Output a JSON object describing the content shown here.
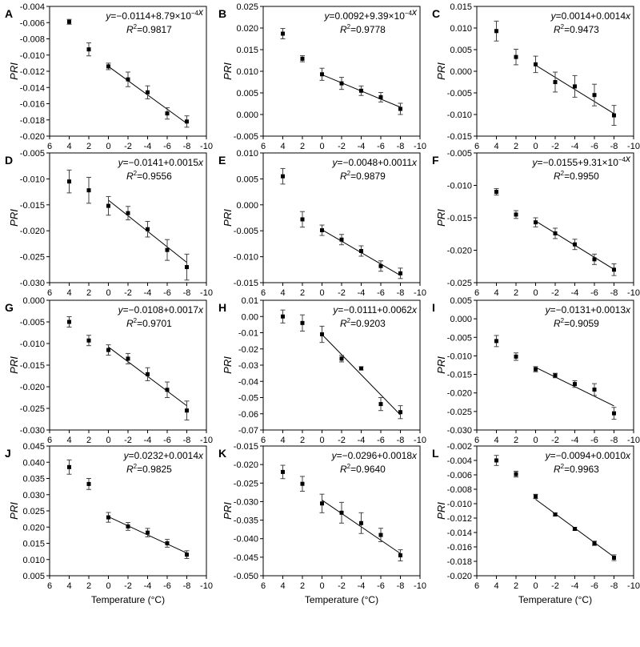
{
  "chart_data": [
    {
      "type": "scatter",
      "panel": "A",
      "ylabel": "PRI",
      "xlabel": "",
      "xlim": [
        6,
        -10
      ],
      "ylim": [
        -0.02,
        -0.004
      ],
      "yticks": [
        "-0.004",
        "-0.006",
        "-0.008",
        "-0.010",
        "-0.012",
        "-0.014",
        "-0.016",
        "-0.018",
        "-0.020"
      ],
      "xticks": [
        "6",
        "4",
        "2",
        "0",
        "-2",
        "-4",
        "-6",
        "-8",
        "-10"
      ],
      "x": [
        4,
        2,
        0,
        -2,
        -4,
        -6,
        -8
      ],
      "y": [
        -0.0059,
        -0.0093,
        -0.0114,
        -0.013,
        -0.0146,
        -0.0172,
        -0.0182
      ],
      "err": [
        0.0003,
        0.0008,
        0.0004,
        0.0009,
        0.0008,
        0.0007,
        0.0007
      ],
      "fit": {
        "intercept": -0.0114,
        "slope": 0.000879,
        "x_range": [
          0,
          -8
        ]
      },
      "equation": "y=−0.0114+8.79×10⁻⁴x",
      "r2": "R²=0.9817"
    },
    {
      "type": "scatter",
      "panel": "B",
      "ylabel": "PRI",
      "xlabel": "",
      "xlim": [
        6,
        -10
      ],
      "ylim": [
        -0.005,
        0.025
      ],
      "yticks": [
        "0.025",
        "0.020",
        "0.015",
        "0.010",
        "0.005",
        "0.000",
        "-0.005"
      ],
      "xticks": [
        "6",
        "4",
        "2",
        "0",
        "-2",
        "-4",
        "-6",
        "-8",
        "-10"
      ],
      "x": [
        4,
        2,
        0,
        -2,
        -4,
        -6,
        -8
      ],
      "y": [
        0.0187,
        0.0129,
        0.0093,
        0.0072,
        0.0055,
        0.004,
        0.0013
      ],
      "err": [
        0.0012,
        0.0007,
        0.0014,
        0.0014,
        0.0011,
        0.0011,
        0.0013
      ],
      "fit": {
        "intercept": 0.0092,
        "slope": 0.000939,
        "x_range": [
          0,
          -8
        ]
      },
      "equation": "y=0.0092+9.39×10⁻⁴x",
      "r2": "R²=0.9778"
    },
    {
      "type": "scatter",
      "panel": "C",
      "ylabel": "PRI",
      "xlabel": "",
      "xlim": [
        6,
        -10
      ],
      "ylim": [
        -0.015,
        0.015
      ],
      "yticks": [
        "0.015",
        "0.010",
        "0.005",
        "0.000",
        "-0.005",
        "-0.010",
        "-0.015"
      ],
      "xticks": [
        "6",
        "4",
        "2",
        "0",
        "-2",
        "-4",
        "-6",
        "-8",
        "-10"
      ],
      "x": [
        4,
        2,
        0,
        -2,
        -4,
        -6,
        -8
      ],
      "y": [
        0.0093,
        0.0033,
        0.0016,
        -0.0025,
        -0.0035,
        -0.0055,
        -0.0102
      ],
      "err": [
        0.0023,
        0.0018,
        0.0019,
        0.0023,
        0.0025,
        0.0025,
        0.0023
      ],
      "fit": {
        "intercept": 0.0014,
        "slope": 0.0014,
        "x_range": [
          0,
          -8
        ]
      },
      "equation": "y=0.0014+0.0014x",
      "r2": "R²=0.9473"
    },
    {
      "type": "scatter",
      "panel": "D",
      "ylabel": "PRI",
      "xlabel": "",
      "xlim": [
        6,
        -10
      ],
      "ylim": [
        -0.03,
        -0.005
      ],
      "yticks": [
        "-0.005",
        "-0.010",
        "-0.015",
        "-0.020",
        "-0.025",
        "-0.030"
      ],
      "xticks": [
        "6",
        "4",
        "2",
        "0",
        "-2",
        "-4",
        "-6",
        "-8",
        "-10"
      ],
      "x": [
        4,
        2,
        0,
        -2,
        -4,
        -6,
        -8
      ],
      "y": [
        -0.0105,
        -0.0122,
        -0.0152,
        -0.0166,
        -0.0197,
        -0.0237,
        -0.027
      ],
      "err": [
        0.0022,
        0.0025,
        0.0018,
        0.0013,
        0.0015,
        0.002,
        0.0025
      ],
      "fit": {
        "intercept": -0.0141,
        "slope": 0.0015,
        "x_range": [
          0,
          -8
        ]
      },
      "equation": "y=−0.0141+0.0015x",
      "r2": "R²=0.9556"
    },
    {
      "type": "scatter",
      "panel": "E",
      "ylabel": "PRI",
      "xlabel": "",
      "xlim": [
        6,
        -10
      ],
      "ylim": [
        -0.015,
        0.01
      ],
      "yticks": [
        "0.010",
        "0.005",
        "0.000",
        "-0.005",
        "-0.010",
        "-0.015"
      ],
      "xticks": [
        "6",
        "4",
        "2",
        "0",
        "-2",
        "-4",
        "-6",
        "-8",
        "-10"
      ],
      "x": [
        4,
        2,
        0,
        -2,
        -4,
        -6,
        -8
      ],
      "y": [
        0.0055,
        -0.0028,
        -0.0049,
        -0.0067,
        -0.0089,
        -0.0118,
        -0.0132
      ],
      "err": [
        0.0015,
        0.0015,
        0.001,
        0.001,
        0.001,
        0.001,
        0.001
      ],
      "fit": {
        "intercept": -0.0048,
        "slope": 0.0011,
        "x_range": [
          0,
          -8
        ]
      },
      "equation": "y=−0.0048+0.0011x",
      "r2": "R²=0.9879"
    },
    {
      "type": "scatter",
      "panel": "F",
      "ylabel": "PRI",
      "xlabel": "",
      "xlim": [
        6,
        -10
      ],
      "ylim": [
        -0.025,
        -0.005
      ],
      "yticks": [
        "-0.005",
        "-0.010",
        "-0.015",
        "-0.020",
        "-0.025"
      ],
      "xticks": [
        "6",
        "4",
        "2",
        "0",
        "-2",
        "-4",
        "-6",
        "-8",
        "-10"
      ],
      "x": [
        4,
        2,
        0,
        -2,
        -4,
        -6,
        -8
      ],
      "y": [
        -0.011,
        -0.0145,
        -0.0157,
        -0.0174,
        -0.0191,
        -0.0214,
        -0.023
      ],
      "err": [
        0.0005,
        0.0006,
        0.0007,
        0.0008,
        0.0008,
        0.0008,
        0.0009
      ],
      "fit": {
        "intercept": -0.0155,
        "slope": 0.000931,
        "x_range": [
          0,
          -8
        ]
      },
      "equation": "y=−0.0155+9.31×10⁻⁴x",
      "r2": "R²=0.9950"
    },
    {
      "type": "scatter",
      "panel": "G",
      "ylabel": "PRI",
      "xlabel": "",
      "xlim": [
        6,
        -10
      ],
      "ylim": [
        -0.03,
        0.0
      ],
      "yticks": [
        "0.000",
        "-0.005",
        "-0.010",
        "-0.015",
        "-0.020",
        "-0.025",
        "-0.030"
      ],
      "xticks": [
        "6",
        "4",
        "2",
        "0",
        "-2",
        "-4",
        "-6",
        "-8",
        "-10"
      ],
      "x": [
        4,
        2,
        0,
        -2,
        -4,
        -6,
        -8
      ],
      "y": [
        -0.005,
        -0.0093,
        -0.0115,
        -0.0135,
        -0.0171,
        -0.0207,
        -0.0255
      ],
      "err": [
        0.0012,
        0.0012,
        0.0012,
        0.0012,
        0.0015,
        0.0018,
        0.0022
      ],
      "fit": {
        "intercept": -0.0108,
        "slope": 0.0017,
        "x_range": [
          0,
          -8
        ]
      },
      "equation": "y=−0.0108+0.0017x",
      "r2": "R²=0.9701"
    },
    {
      "type": "scatter",
      "panel": "H",
      "ylabel": "PRI",
      "xlabel": "",
      "xlim": [
        6,
        -10
      ],
      "ylim": [
        -0.07,
        0.01
      ],
      "yticks": [
        "0.01",
        "0.00",
        "-0.01",
        "-0.02",
        "-0.03",
        "-0.04",
        "-0.05",
        "-0.06",
        "-0.07"
      ],
      "xticks": [
        "6",
        "4",
        "2",
        "0",
        "-2",
        "-4",
        "-6",
        "-8",
        "-10"
      ],
      "x": [
        4,
        2,
        0,
        -2,
        -4,
        -6,
        -8
      ],
      "y": [
        0.0,
        -0.004,
        -0.011,
        -0.026,
        -0.032,
        -0.054,
        -0.059
      ],
      "err": [
        0.004,
        0.005,
        0.005,
        0.002,
        0.001,
        0.004,
        0.004
      ],
      "fit": {
        "intercept": -0.0111,
        "slope": 0.0062,
        "x_range": [
          0,
          -8
        ]
      },
      "equation": "y=−0.0111+0.0062x",
      "r2": "R²=0.9203"
    },
    {
      "type": "scatter",
      "panel": "I",
      "ylabel": "PRI",
      "xlabel": "",
      "xlim": [
        6,
        -10
      ],
      "ylim": [
        -0.03,
        0.005
      ],
      "yticks": [
        "0.005",
        "0.000",
        "-0.005",
        "-0.010",
        "-0.015",
        "-0.020",
        "-0.025",
        "-0.030"
      ],
      "xticks": [
        "6",
        "4",
        "2",
        "0",
        "-2",
        "-4",
        "-6",
        "-8",
        "-10"
      ],
      "x": [
        4,
        2,
        0,
        -2,
        -4,
        -6,
        -8
      ],
      "y": [
        -0.006,
        -0.0102,
        -0.0136,
        -0.0153,
        -0.0176,
        -0.0191,
        -0.0255
      ],
      "err": [
        0.0015,
        0.001,
        0.0007,
        0.0006,
        0.0009,
        0.0016,
        0.0016
      ],
      "fit": {
        "intercept": -0.0131,
        "slope": 0.0013,
        "x_range": [
          0,
          -8
        ]
      },
      "equation": "y=−0.0131+0.0013x",
      "r2": "R²=0.9059"
    },
    {
      "type": "scatter",
      "panel": "J",
      "ylabel": "PRI",
      "xlabel": "Temperature (°C)",
      "xlim": [
        6,
        -10
      ],
      "ylim": [
        0.005,
        0.045
      ],
      "yticks": [
        "0.045",
        "0.040",
        "0.035",
        "0.030",
        "0.025",
        "0.020",
        "0.015",
        "0.010",
        "0.005"
      ],
      "xticks": [
        "6",
        "4",
        "2",
        "0",
        "-2",
        "-4",
        "-6",
        "-8",
        "-10"
      ],
      "x": [
        4,
        2,
        0,
        -2,
        -4,
        -6,
        -8
      ],
      "y": [
        0.0385,
        0.0333,
        0.023,
        0.0202,
        0.0183,
        0.015,
        0.0115
      ],
      "err": [
        0.0022,
        0.0017,
        0.0015,
        0.0012,
        0.0013,
        0.0012,
        0.0012
      ],
      "fit": {
        "intercept": 0.0232,
        "slope": 0.0014,
        "x_range": [
          0,
          -8
        ]
      },
      "equation": "y=0.0232+0.0014x",
      "r2": "R²=0.9825"
    },
    {
      "type": "scatter",
      "panel": "K",
      "ylabel": "PRI",
      "xlabel": "Temperature (°C)",
      "xlim": [
        6,
        -10
      ],
      "ylim": [
        -0.05,
        -0.015
      ],
      "yticks": [
        "-0.015",
        "-0.020",
        "-0.025",
        "-0.030",
        "-0.035",
        "-0.040",
        "-0.045",
        "-0.050"
      ],
      "xticks": [
        "6",
        "4",
        "2",
        "0",
        "-2",
        "-4",
        "-6",
        "-8",
        "-10"
      ],
      "x": [
        4,
        2,
        0,
        -2,
        -4,
        -6,
        -8
      ],
      "y": [
        -0.022,
        -0.0252,
        -0.0305,
        -0.033,
        -0.0358,
        -0.039,
        -0.0445
      ],
      "err": [
        0.0018,
        0.002,
        0.0025,
        0.0028,
        0.0028,
        0.0018,
        0.0015
      ],
      "fit": {
        "intercept": -0.0296,
        "slope": 0.0018,
        "x_range": [
          0,
          -8
        ]
      },
      "equation": "y=−0.0296+0.0018x",
      "r2": "R²=0.9640"
    },
    {
      "type": "scatter",
      "panel": "L",
      "ylabel": "PRI",
      "xlabel": "Temperature (°C)",
      "xlim": [
        6,
        -10
      ],
      "ylim": [
        -0.02,
        -0.002
      ],
      "yticks": [
        "-0.002",
        "-0.004",
        "-0.006",
        "-0.008",
        "-0.010",
        "-0.012",
        "-0.014",
        "-0.016",
        "-0.018",
        "-0.020"
      ],
      "xticks": [
        "6",
        "4",
        "2",
        "0",
        "-2",
        "-4",
        "-6",
        "-8",
        "-10"
      ],
      "x": [
        4,
        2,
        0,
        -2,
        -4,
        -6,
        -8
      ],
      "y": [
        -0.004,
        -0.0059,
        -0.009,
        -0.0115,
        -0.0135,
        -0.0155,
        -0.0175
      ],
      "err": [
        0.0007,
        0.0004,
        0.0003,
        0.0002,
        0.0002,
        0.0003,
        0.0004
      ],
      "fit": {
        "intercept": -0.0094,
        "slope": 0.001,
        "x_range": [
          0,
          -8
        ]
      },
      "equation": "y=−0.0094+0.0010x",
      "r2": "R²=0.9963"
    }
  ]
}
